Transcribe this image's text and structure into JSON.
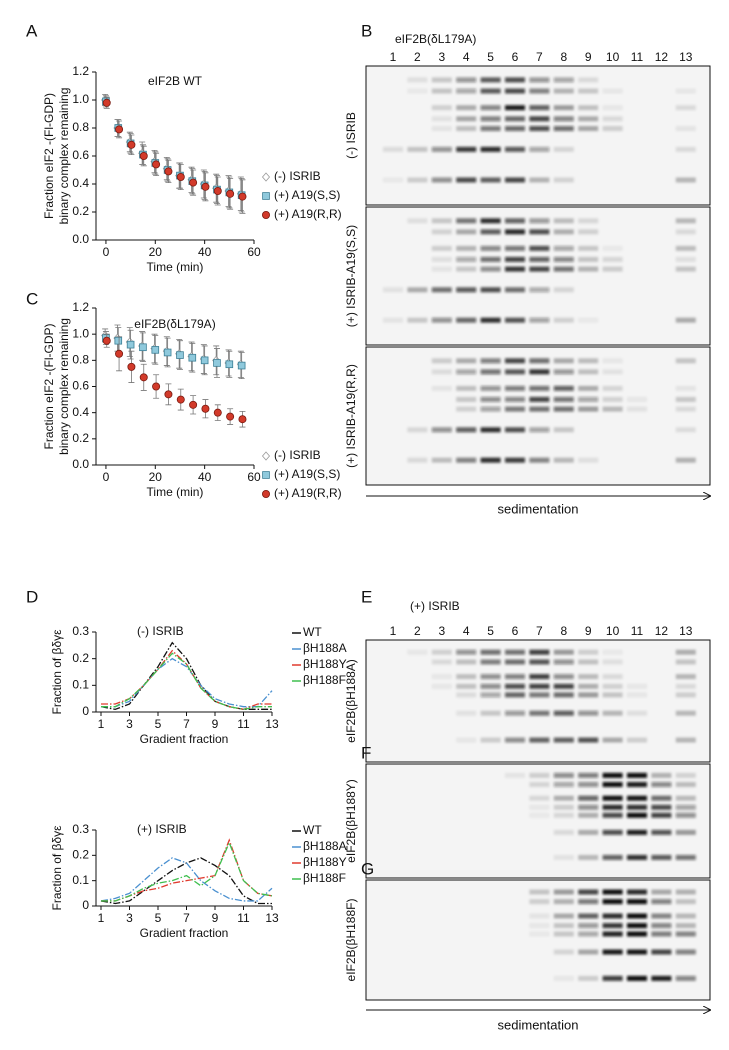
{
  "chart_data": [
    {
      "type": "scatter",
      "panel": "A",
      "title": "eIF2B WT",
      "x_label": "Time (min)",
      "y_label": [
        "Fraction eIF2 -(Fl-GDP)",
        "binary complex remaining"
      ],
      "x": [
        0,
        5,
        10,
        15,
        20,
        25,
        30,
        35,
        40,
        45,
        50,
        55
      ],
      "series": [
        {
          "name": "(-) ISRIB",
          "color": "#9a9a9a",
          "marker": "diamond",
          "values": [
            1.0,
            0.8,
            0.7,
            0.62,
            0.56,
            0.51,
            0.46,
            0.43,
            0.4,
            0.37,
            0.35,
            0.33
          ],
          "errors": [
            0.04,
            0.06,
            0.07,
            0.08,
            0.08,
            0.08,
            0.09,
            0.09,
            0.1,
            0.1,
            0.11,
            0.12
          ]
        },
        {
          "name": "(+) A19(S,S)",
          "color": "#8fc9dc",
          "marker": "square",
          "values": [
            0.99,
            0.8,
            0.69,
            0.61,
            0.55,
            0.5,
            0.46,
            0.42,
            0.39,
            0.36,
            0.34,
            0.32
          ],
          "errors": [
            0.04,
            0.06,
            0.07,
            0.07,
            0.08,
            0.08,
            0.09,
            0.09,
            0.1,
            0.1,
            0.11,
            0.12
          ]
        },
        {
          "name": "(+) A19(R,R)",
          "color": "#d23a2a",
          "marker": "circle",
          "values": [
            0.98,
            0.79,
            0.68,
            0.6,
            0.54,
            0.49,
            0.45,
            0.41,
            0.38,
            0.35,
            0.33,
            0.31
          ],
          "errors": [
            0.04,
            0.06,
            0.07,
            0.07,
            0.08,
            0.08,
            0.09,
            0.09,
            0.1,
            0.1,
            0.11,
            0.12
          ]
        }
      ],
      "xlim": [
        -2,
        60
      ],
      "xticks": [
        0,
        20,
        40,
        60
      ],
      "ylim": [
        0,
        1.2
      ],
      "yticks": [
        {
          "value": 0,
          "label": "0.0"
        },
        0.2,
        0.4,
        0.6,
        0.8,
        {
          "value": 1,
          "label": "1.0"
        },
        1.2
      ]
    },
    {
      "type": "scatter",
      "panel": "C",
      "title": "eIF2B(δL179A)",
      "x_label": "Time (min)",
      "y_label": [
        "Fraction eIF2 -(Fl-GDP)",
        "binary complex remaining"
      ],
      "x": [
        0,
        5,
        10,
        15,
        20,
        25,
        30,
        35,
        40,
        45,
        50,
        55
      ],
      "series": [
        {
          "name": "(-) ISRIB",
          "color": "#9a9a9a",
          "marker": "diamond",
          "values": [
            0.99,
            0.97,
            0.94,
            0.91,
            0.89,
            0.87,
            0.85,
            0.83,
            0.81,
            0.8,
            0.78,
            0.77
          ],
          "errors": [
            0.05,
            0.1,
            0.11,
            0.11,
            0.11,
            0.11,
            0.11,
            0.11,
            0.11,
            0.11,
            0.1,
            0.1
          ]
        },
        {
          "name": "(+) A19(S,S)",
          "color": "#8fc9dc",
          "marker": "square",
          "values": [
            0.97,
            0.95,
            0.92,
            0.9,
            0.88,
            0.86,
            0.84,
            0.82,
            0.8,
            0.78,
            0.77,
            0.76
          ],
          "errors": [
            0.05,
            0.1,
            0.11,
            0.11,
            0.11,
            0.11,
            0.11,
            0.11,
            0.11,
            0.11,
            0.1,
            0.1
          ]
        },
        {
          "name": "(+) A19(R,R)",
          "color": "#d23a2a",
          "marker": "circle",
          "values": [
            0.95,
            0.85,
            0.75,
            0.67,
            0.6,
            0.54,
            0.5,
            0.46,
            0.43,
            0.4,
            0.37,
            0.35
          ],
          "errors": [
            0.05,
            0.13,
            0.12,
            0.1,
            0.09,
            0.08,
            0.08,
            0.07,
            0.07,
            0.06,
            0.06,
            0.06
          ]
        }
      ],
      "xlim": [
        -2,
        60
      ],
      "xticks": [
        0,
        20,
        40,
        60
      ],
      "ylim": [
        0,
        1.2
      ],
      "yticks": [
        {
          "value": 0,
          "label": "0.0"
        },
        0.2,
        0.4,
        0.6,
        0.8,
        {
          "value": 1,
          "label": "1.0"
        },
        1.2
      ]
    },
    {
      "type": "line",
      "panel": "D",
      "title": "(-) ISRIB",
      "x_label": "Gradient fraction",
      "y_label": [
        "Fraction of βδγε"
      ],
      "x": [
        1,
        2,
        3,
        4,
        5,
        6,
        7,
        8,
        9,
        10,
        11,
        12,
        13
      ],
      "series": [
        {
          "name": "WT",
          "color": "#111111",
          "values": [
            0.02,
            0.01,
            0.03,
            0.1,
            0.17,
            0.26,
            0.2,
            0.1,
            0.04,
            0.02,
            0.01,
            0.01,
            0.01
          ]
        },
        {
          "name": "βH188A",
          "color": "#4a90d0",
          "values": [
            0.02,
            0.02,
            0.04,
            0.1,
            0.16,
            0.2,
            0.17,
            0.1,
            0.05,
            0.03,
            0.02,
            0.02,
            0.08
          ]
        },
        {
          "name": "βH188Y",
          "color": "#e03a2e",
          "values": [
            0.03,
            0.03,
            0.05,
            0.1,
            0.16,
            0.23,
            0.18,
            0.09,
            0.04,
            0.02,
            0.01,
            0.03,
            0.03
          ]
        },
        {
          "name": "βH188F",
          "color": "#3fbf4f",
          "values": [
            0.02,
            0.02,
            0.05,
            0.1,
            0.16,
            0.22,
            0.18,
            0.09,
            0.04,
            0.02,
            0.01,
            0.02,
            0.02
          ]
        }
      ],
      "xlim": [
        1,
        13
      ],
      "xticks": [
        1,
        3,
        5,
        7,
        9,
        11,
        13
      ],
      "ylim": [
        0,
        0.3
      ],
      "yticks": [
        0,
        0.1,
        0.2,
        0.3
      ]
    },
    {
      "type": "line",
      "title": "(+) ISRIB",
      "x_label": "Gradient fraction",
      "y_label": [
        "Fraction of βδγε"
      ],
      "x": [
        1,
        2,
        3,
        4,
        5,
        6,
        7,
        8,
        9,
        10,
        11,
        12,
        13
      ],
      "series": [
        {
          "name": "WT",
          "color": "#111111",
          "values": [
            0.02,
            0.01,
            0.02,
            0.06,
            0.1,
            0.14,
            0.17,
            0.19,
            0.16,
            0.12,
            0.04,
            0.01,
            0.01
          ]
        },
        {
          "name": "βH188A",
          "color": "#4a90d0",
          "values": [
            0.02,
            0.03,
            0.05,
            0.1,
            0.15,
            0.19,
            0.17,
            0.1,
            0.06,
            0.03,
            0.02,
            0.02,
            0.07
          ]
        },
        {
          "name": "βH188Y",
          "color": "#e03a2e",
          "values": [
            0.02,
            0.02,
            0.04,
            0.06,
            0.07,
            0.09,
            0.1,
            0.11,
            0.12,
            0.26,
            0.1,
            0.05,
            0.04
          ]
        },
        {
          "name": "βH188F",
          "color": "#3fbf4f",
          "values": [
            0.02,
            0.02,
            0.04,
            0.07,
            0.09,
            0.1,
            0.12,
            0.08,
            0.12,
            0.25,
            0.1,
            0.05,
            0.04
          ]
        }
      ],
      "xlim": [
        1,
        13
      ],
      "xticks": [
        1,
        3,
        5,
        7,
        9,
        11,
        13
      ],
      "ylim": [
        0,
        0.3
      ],
      "yticks": [
        0,
        0.1,
        0.2,
        0.3
      ]
    }
  ],
  "gels": [
    {
      "panel": "B",
      "title": "eIF2B(δL179A)",
      "lanes": [
        1,
        2,
        3,
        4,
        5,
        6,
        7,
        8,
        9,
        10,
        11,
        12,
        13
      ],
      "blots": [
        {
          "label": "(-) ISRIB"
        },
        {
          "label": "(+) ISRIB-A19(S,S)"
        },
        {
          "label": "(+) ISRIB-A19(R,R)"
        }
      ],
      "axis_label": "sedimentation"
    },
    {
      "panel": "E",
      "title": "(+) ISRIB",
      "lanes": [
        1,
        2,
        3,
        4,
        5,
        6,
        7,
        8,
        9,
        10,
        11,
        12,
        13
      ],
      "blots": [
        {
          "label": "eIF2B(βH188A)"
        },
        {
          "panel": "F",
          "label": "eIF2B(βH188Y)"
        },
        {
          "panel": "G",
          "label": "eIF2B(βH188F)"
        }
      ],
      "axis_label": "sedimentation"
    }
  ]
}
